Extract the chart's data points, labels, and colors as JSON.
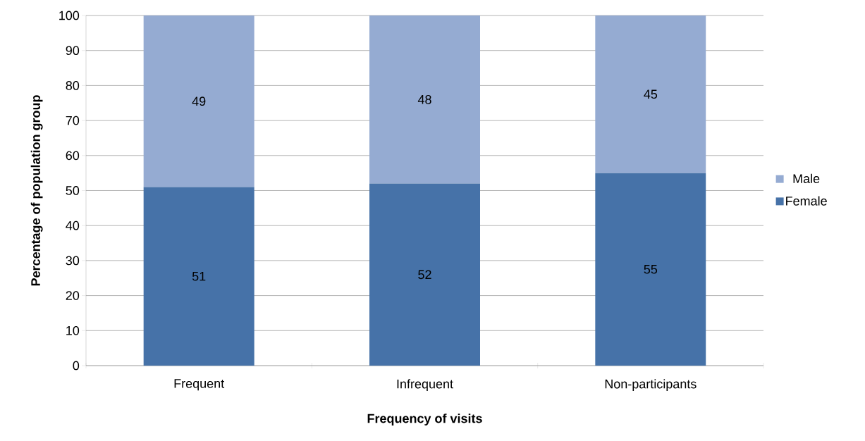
{
  "chart_data": {
    "type": "bar",
    "stacked": true,
    "xlabel": "Frequency of visits",
    "ylabel": "Percentage of population group",
    "categories": [
      "Frequent",
      "Infrequent",
      "Non-participants"
    ],
    "series": [
      {
        "name": "Female",
        "color": "#4672a8",
        "values": [
          51,
          52,
          55
        ]
      },
      {
        "name": "Male",
        "color": "#95abd2",
        "values": [
          49,
          48,
          45
        ]
      }
    ],
    "ylim": [
      0,
      100
    ],
    "yticks": [
      0,
      10,
      20,
      30,
      40,
      50,
      60,
      70,
      80,
      90,
      100
    ],
    "grid": "y",
    "legend": "right",
    "data_labels": true
  }
}
